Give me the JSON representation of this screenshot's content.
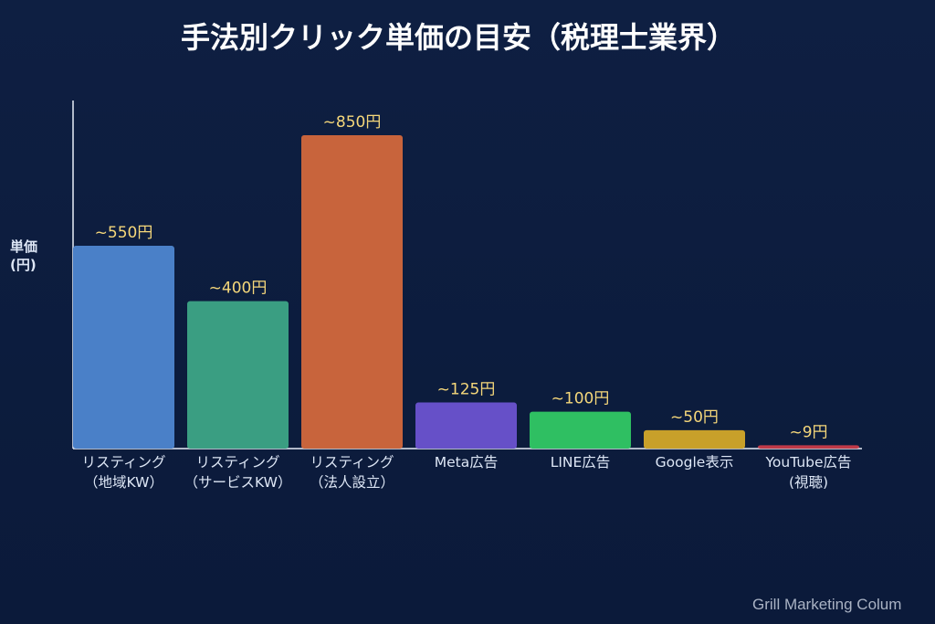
{
  "chart_data": {
    "type": "bar",
    "title": "手法別クリック単価の目安（税理士業界）",
    "ylabel": [
      "単価",
      "(円)"
    ],
    "ylim": [
      0,
      850
    ],
    "grid": false,
    "categories": [
      [
        "リスティング",
        "（地域KW）"
      ],
      [
        "リスティング",
        "（サービスKW）"
      ],
      [
        "リスティング",
        "（法人設立）"
      ],
      [
        "Meta広告"
      ],
      [
        "LINE広告"
      ],
      [
        "Google表示"
      ],
      [
        "YouTube広告",
        "(視聴)"
      ]
    ],
    "values": [
      550,
      400,
      850,
      125,
      100,
      50,
      9
    ],
    "value_labels": [
      "~550円",
      "~400円",
      "~850円",
      "~125円",
      "~100円",
      "~50円",
      "~9円"
    ],
    "colors": [
      "#4a80c8",
      "#3a9e82",
      "#c8643c",
      "#6650c8",
      "#2fbf62",
      "#c8a02a",
      "#c03a48"
    ]
  },
  "watermark": "Grill Marketing Colum"
}
